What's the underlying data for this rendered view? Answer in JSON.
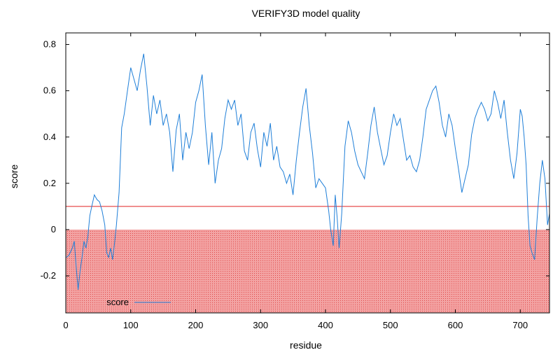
{
  "chart_data": {
    "type": "line",
    "title": "VERIFY3D model quality",
    "xlabel": "residue",
    "ylabel": "score",
    "xlim": [
      0,
      745
    ],
    "ylim": [
      -0.36,
      0.85
    ],
    "xticks": [
      0,
      100,
      200,
      300,
      400,
      500,
      600,
      700
    ],
    "xtick_labels": [
      "0",
      "100",
      "200",
      "300",
      "400",
      "500",
      "600",
      "700"
    ],
    "yticks": [
      -0.2,
      0,
      0.2,
      0.4,
      0.6,
      0.8
    ],
    "ytick_labels": [
      "-0.2",
      "0",
      "0.2",
      "0.4",
      "0.6",
      "0.8"
    ],
    "threshold_line": 0.1,
    "shaded_region": [
      -0.36,
      0
    ],
    "legend_position": "bottom-left",
    "colors": {
      "series": "#1f7fd8",
      "threshold": "#e02020",
      "shade": "#f08080",
      "frame": "#000000"
    },
    "series": [
      {
        "name": "score",
        "x": [
          1,
          5,
          10,
          13,
          16,
          19,
          22,
          25,
          28,
          31,
          34,
          37,
          40,
          44,
          48,
          52,
          56,
          60,
          63,
          66,
          69,
          72,
          75,
          78,
          82,
          86,
          90,
          95,
          100,
          105,
          110,
          115,
          120,
          125,
          130,
          135,
          140,
          145,
          150,
          155,
          160,
          165,
          170,
          175,
          180,
          185,
          190,
          195,
          200,
          205,
          210,
          215,
          220,
          225,
          230,
          235,
          240,
          245,
          250,
          255,
          260,
          265,
          270,
          275,
          280,
          285,
          290,
          295,
          300,
          305,
          310,
          315,
          320,
          325,
          330,
          335,
          340,
          345,
          350,
          355,
          360,
          365,
          370,
          375,
          380,
          385,
          390,
          395,
          400,
          405,
          408,
          412,
          415,
          418,
          421,
          425,
          430,
          435,
          440,
          445,
          450,
          455,
          460,
          465,
          470,
          475,
          480,
          485,
          490,
          495,
          500,
          505,
          510,
          515,
          520,
          525,
          530,
          535,
          540,
          545,
          550,
          555,
          560,
          565,
          570,
          575,
          580,
          585,
          590,
          595,
          600,
          605,
          610,
          615,
          620,
          625,
          630,
          635,
          640,
          645,
          650,
          655,
          660,
          665,
          670,
          675,
          680,
          685,
          690,
          695,
          700,
          703,
          706,
          709,
          712,
          715,
          718,
          722,
          726,
          730,
          734,
          738,
          742,
          745
        ],
        "values": [
          -0.12,
          -0.11,
          -0.08,
          -0.05,
          -0.16,
          -0.26,
          -0.18,
          -0.12,
          -0.05,
          -0.08,
          -0.03,
          0.06,
          0.1,
          0.15,
          0.13,
          0.12,
          0.08,
          0.02,
          -0.1,
          -0.12,
          -0.08,
          -0.13,
          -0.06,
          0.02,
          0.16,
          0.44,
          0.5,
          0.6,
          0.7,
          0.65,
          0.6,
          0.69,
          0.76,
          0.62,
          0.45,
          0.58,
          0.5,
          0.56,
          0.45,
          0.5,
          0.42,
          0.25,
          0.43,
          0.5,
          0.3,
          0.42,
          0.35,
          0.42,
          0.55,
          0.6,
          0.67,
          0.45,
          0.28,
          0.42,
          0.2,
          0.3,
          0.35,
          0.48,
          0.56,
          0.52,
          0.56,
          0.45,
          0.5,
          0.34,
          0.3,
          0.42,
          0.46,
          0.35,
          0.27,
          0.42,
          0.36,
          0.46,
          0.3,
          0.36,
          0.27,
          0.25,
          0.2,
          0.24,
          0.15,
          0.3,
          0.42,
          0.53,
          0.61,
          0.45,
          0.33,
          0.18,
          0.22,
          0.2,
          0.18,
          0.08,
          0.0,
          -0.07,
          0.15,
          0.05,
          -0.08,
          0.07,
          0.36,
          0.47,
          0.42,
          0.34,
          0.28,
          0.25,
          0.22,
          0.33,
          0.45,
          0.53,
          0.42,
          0.35,
          0.28,
          0.32,
          0.42,
          0.5,
          0.45,
          0.48,
          0.39,
          0.3,
          0.32,
          0.27,
          0.25,
          0.3,
          0.4,
          0.52,
          0.56,
          0.6,
          0.62,
          0.55,
          0.45,
          0.4,
          0.5,
          0.45,
          0.35,
          0.26,
          0.16,
          0.22,
          0.28,
          0.41,
          0.48,
          0.52,
          0.55,
          0.52,
          0.47,
          0.5,
          0.6,
          0.55,
          0.48,
          0.56,
          0.42,
          0.3,
          0.22,
          0.33,
          0.52,
          0.49,
          0.4,
          0.28,
          0.06,
          -0.07,
          -0.1,
          -0.13,
          0.05,
          0.2,
          0.3,
          0.22,
          0.02,
          0.07
        ]
      }
    ]
  }
}
